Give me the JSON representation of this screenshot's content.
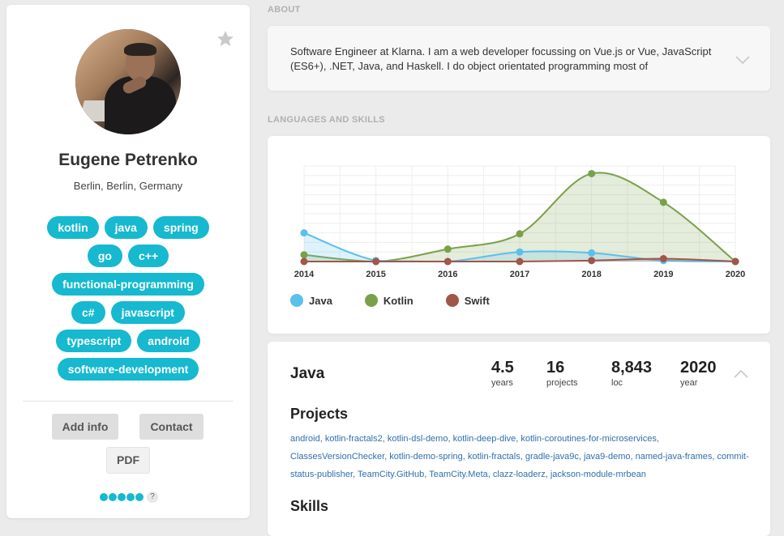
{
  "profile": {
    "name": "Eugene Petrenko",
    "location": "Berlin, Berlin, Germany",
    "tags": [
      [
        "kotlin",
        "java",
        "spring"
      ],
      [
        "go",
        "c++"
      ],
      [
        "functional-programming"
      ],
      [
        "c#",
        "javascript"
      ],
      [
        "typescript",
        "android"
      ],
      [
        "software-development"
      ]
    ],
    "buttons": {
      "add_info": "Add info",
      "contact": "Contact",
      "pdf": "PDF"
    },
    "rating": {
      "filled": 5,
      "help": "?"
    },
    "icons": [
      "star-icon",
      "avatar-photo"
    ]
  },
  "about": {
    "label": "ABOUT",
    "text": "Software Engineer at Klarna. I am a web developer focussing on Vue.js or Vue, JavaScript (ES6+), .NET, Java, and Haskell. I do object orientated programming most of"
  },
  "skills": {
    "label": "LANGUAGES AND SKILLS"
  },
  "chart_data": {
    "type": "area",
    "x": [
      "2014",
      "2015",
      "2016",
      "2017",
      "2018",
      "2019",
      "2020"
    ],
    "series": [
      {
        "name": "Java",
        "color": "#5bc0eb",
        "values": [
          30,
          1,
          0,
          10,
          9,
          1,
          0
        ]
      },
      {
        "name": "Kotlin",
        "color": "#7aa04a",
        "values": [
          7,
          0,
          13,
          29,
          92,
          62,
          0
        ]
      },
      {
        "name": "Swift",
        "color": "#a0564a",
        "values": [
          0,
          0,
          0,
          0,
          1,
          3,
          0
        ]
      }
    ],
    "ylim": [
      0,
      100
    ],
    "grid": true,
    "legend": "bottom-left"
  },
  "language": {
    "name": "Java",
    "stats": [
      {
        "value": "4.5",
        "unit": "years"
      },
      {
        "value": "16",
        "unit": "projects"
      },
      {
        "value": "8,843",
        "unit": "loc"
      },
      {
        "value": "2020",
        "unit": "year"
      }
    ],
    "projects_heading": "Projects",
    "projects": [
      "android",
      "kotlin-fractals2",
      "kotlin-dsl-demo",
      "kotlin-deep-dive",
      "kotlin-coroutines-for-microservices",
      "ClassesVersionChecker",
      "kotlin-demo-spring",
      "kotlin-fractals",
      "gradle-java9c",
      "java9-demo",
      "named-java-frames",
      "commit-status-publisher",
      "TeamCity.GitHub",
      "TeamCity.Meta",
      "clazz-loaderz",
      "jackson-module-mrbean"
    ],
    "skills_heading": "Skills"
  }
}
